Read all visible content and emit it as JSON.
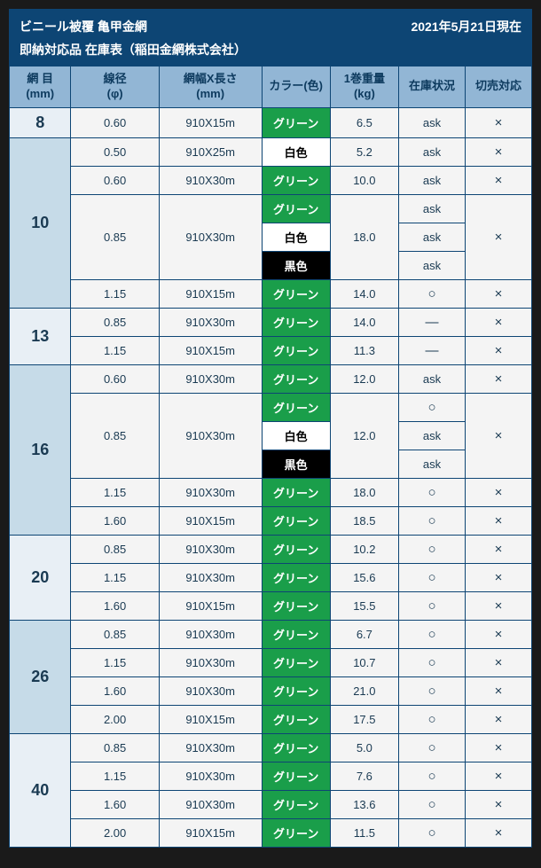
{
  "header": {
    "title_left": "ビニール被覆 亀甲金網",
    "title_right": "2021年5月21日現在",
    "subtitle": "即納対応品 在庫表（稲田金網株式会社）"
  },
  "columns": [
    {
      "l1": "網 目",
      "l2": "(mm)",
      "w": 63
    },
    {
      "l1": "線径",
      "l2": "(φ)",
      "w": 90
    },
    {
      "l1": "網幅X長さ",
      "l2": "(mm)",
      "w": 105
    },
    {
      "l1": "カラー(色)",
      "l2": "",
      "w": 70
    },
    {
      "l1": "1巻重量",
      "l2": "(kg)",
      "w": 70
    },
    {
      "l1": "在庫状況",
      "l2": "",
      "w": 68
    },
    {
      "l1": "切売対応",
      "l2": "",
      "w": 68
    }
  ],
  "groups": [
    {
      "mesh": "8",
      "light": true,
      "rows": [
        {
          "dia": "0.60",
          "size": "910X15m",
          "colors": [
            {
              "t": "グリーン",
              "c": "green"
            }
          ],
          "wt": "6.5",
          "stock": [
            "ask"
          ],
          "cut": "cross"
        }
      ]
    },
    {
      "mesh": "10",
      "rows": [
        {
          "dia": "0.50",
          "size": "910X25m",
          "colors": [
            {
              "t": "白色",
              "c": "white"
            }
          ],
          "wt": "5.2",
          "stock": [
            "ask"
          ],
          "cut": "cross"
        },
        {
          "dia": "0.60",
          "size": "910X30m",
          "colors": [
            {
              "t": "グリーン",
              "c": "green"
            }
          ],
          "wt": "10.0",
          "stock": [
            "ask"
          ],
          "cut": "cross"
        },
        {
          "dia": "0.85",
          "size": "910X30m",
          "colors": [
            {
              "t": "グリーン",
              "c": "green"
            },
            {
              "t": "白色",
              "c": "white"
            },
            {
              "t": "黒色",
              "c": "black"
            }
          ],
          "wt": "18.0",
          "stock": [
            "ask",
            "ask",
            "ask"
          ],
          "cut": "cross"
        },
        {
          "dia": "1.15",
          "size": "910X15m",
          "colors": [
            {
              "t": "グリーン",
              "c": "green"
            }
          ],
          "wt": "14.0",
          "stock": [
            "circle"
          ],
          "cut": "cross"
        }
      ]
    },
    {
      "mesh": "13",
      "light": true,
      "rows": [
        {
          "dia": "0.85",
          "size": "910X30m",
          "colors": [
            {
              "t": "グリーン",
              "c": "green"
            }
          ],
          "wt": "14.0",
          "stock": [
            "dash"
          ],
          "cut": "cross"
        },
        {
          "dia": "1.15",
          "size": "910X15m",
          "colors": [
            {
              "t": "グリーン",
              "c": "green"
            }
          ],
          "wt": "11.3",
          "stock": [
            "dash"
          ],
          "cut": "cross"
        }
      ]
    },
    {
      "mesh": "16",
      "rows": [
        {
          "dia": "0.60",
          "size": "910X30m",
          "colors": [
            {
              "t": "グリーン",
              "c": "green"
            }
          ],
          "wt": "12.0",
          "stock": [
            "ask"
          ],
          "cut": "cross"
        },
        {
          "dia": "0.85",
          "size": "910X30m",
          "colors": [
            {
              "t": "グリーン",
              "c": "green"
            },
            {
              "t": "白色",
              "c": "white"
            },
            {
              "t": "黒色",
              "c": "black"
            }
          ],
          "wt": "12.0",
          "stock": [
            "circle",
            "ask",
            "ask"
          ],
          "cut": "cross"
        },
        {
          "dia": "1.15",
          "size": "910X30m",
          "colors": [
            {
              "t": "グリーン",
              "c": "green"
            }
          ],
          "wt": "18.0",
          "stock": [
            "circle"
          ],
          "cut": "cross"
        },
        {
          "dia": "1.60",
          "size": "910X15m",
          "colors": [
            {
              "t": "グリーン",
              "c": "green"
            }
          ],
          "wt": "18.5",
          "stock": [
            "circle"
          ],
          "cut": "cross"
        }
      ]
    },
    {
      "mesh": "20",
      "light": true,
      "rows": [
        {
          "dia": "0.85",
          "size": "910X30m",
          "colors": [
            {
              "t": "グリーン",
              "c": "green"
            }
          ],
          "wt": "10.2",
          "stock": [
            "circle"
          ],
          "cut": "cross"
        },
        {
          "dia": "1.15",
          "size": "910X30m",
          "colors": [
            {
              "t": "グリーン",
              "c": "green"
            }
          ],
          "wt": "15.6",
          "stock": [
            "circle"
          ],
          "cut": "cross"
        },
        {
          "dia": "1.60",
          "size": "910X15m",
          "colors": [
            {
              "t": "グリーン",
              "c": "green"
            }
          ],
          "wt": "15.5",
          "stock": [
            "circle"
          ],
          "cut": "cross"
        }
      ]
    },
    {
      "mesh": "26",
      "rows": [
        {
          "dia": "0.85",
          "size": "910X30m",
          "colors": [
            {
              "t": "グリーン",
              "c": "green"
            }
          ],
          "wt": "6.7",
          "stock": [
            "circle"
          ],
          "cut": "cross"
        },
        {
          "dia": "1.15",
          "size": "910X30m",
          "colors": [
            {
              "t": "グリーン",
              "c": "green"
            }
          ],
          "wt": "10.7",
          "stock": [
            "circle"
          ],
          "cut": "cross"
        },
        {
          "dia": "1.60",
          "size": "910X30m",
          "colors": [
            {
              "t": "グリーン",
              "c": "green"
            }
          ],
          "wt": "21.0",
          "stock": [
            "circle"
          ],
          "cut": "cross"
        },
        {
          "dia": "2.00",
          "size": "910X15m",
          "colors": [
            {
              "t": "グリーン",
              "c": "green"
            }
          ],
          "wt": "17.5",
          "stock": [
            "circle"
          ],
          "cut": "cross"
        }
      ]
    },
    {
      "mesh": "40",
      "light": true,
      "rows": [
        {
          "dia": "0.85",
          "size": "910X30m",
          "colors": [
            {
              "t": "グリーン",
              "c": "green"
            }
          ],
          "wt": "5.0",
          "stock": [
            "circle"
          ],
          "cut": "cross"
        },
        {
          "dia": "1.15",
          "size": "910X30m",
          "colors": [
            {
              "t": "グリーン",
              "c": "green"
            }
          ],
          "wt": "7.6",
          "stock": [
            "circle"
          ],
          "cut": "cross"
        },
        {
          "dia": "1.60",
          "size": "910X30m",
          "colors": [
            {
              "t": "グリーン",
              "c": "green"
            }
          ],
          "wt": "13.6",
          "stock": [
            "circle"
          ],
          "cut": "cross"
        },
        {
          "dia": "2.00",
          "size": "910X15m",
          "colors": [
            {
              "t": "グリーン",
              "c": "green"
            }
          ],
          "wt": "11.5",
          "stock": [
            "circle"
          ],
          "cut": "cross"
        }
      ]
    }
  ]
}
